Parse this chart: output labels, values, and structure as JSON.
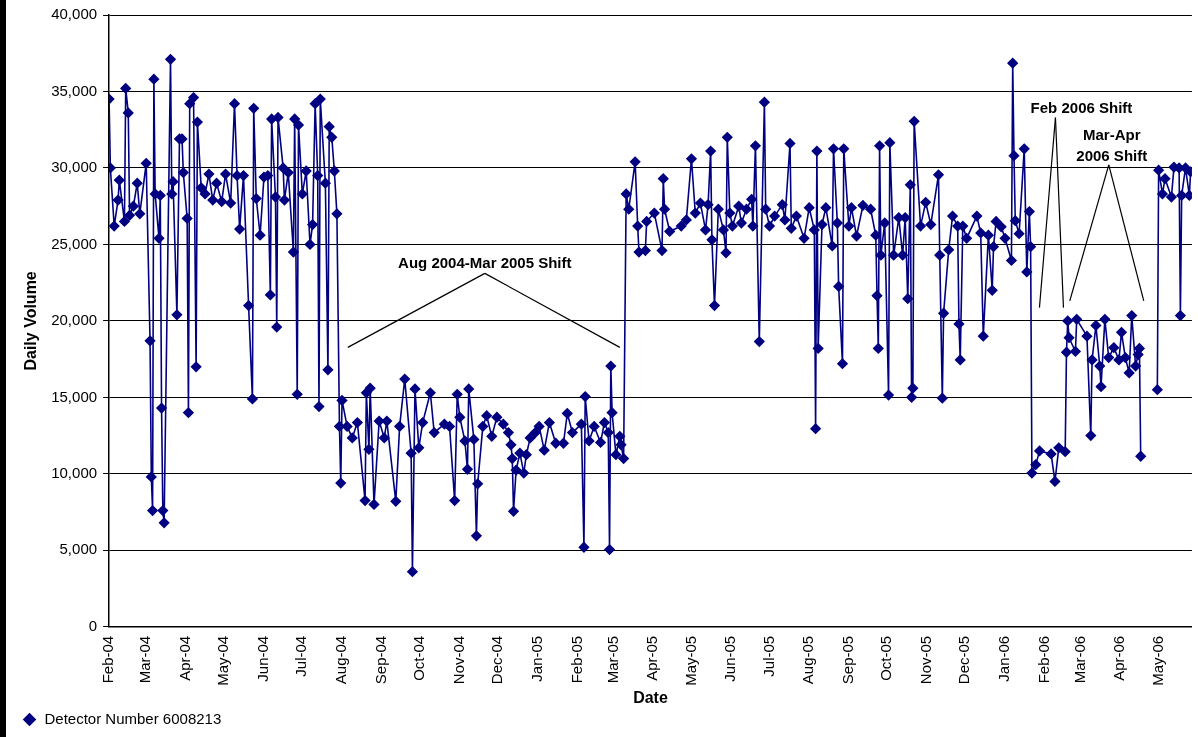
{
  "chart_data": {
    "type": "line",
    "xlabel": "Date",
    "ylabel": "Daily Volume",
    "xlim": [
      "2004-02-01",
      "2006-05-27"
    ],
    "xticks": [
      {
        "value": "2004-02-01",
        "label": "Feb-04"
      },
      {
        "value": "2004-03-01",
        "label": "Mar-04"
      },
      {
        "value": "2004-04-01",
        "label": "Apr-04"
      },
      {
        "value": "2004-05-01",
        "label": "May-04"
      },
      {
        "value": "2004-06-01",
        "label": "Jun-04"
      },
      {
        "value": "2004-07-01",
        "label": "Jul-04"
      },
      {
        "value": "2004-08-01",
        "label": "Aug-04"
      },
      {
        "value": "2004-09-01",
        "label": "Sep-04"
      },
      {
        "value": "2004-10-01",
        "label": "Oct-04"
      },
      {
        "value": "2004-11-01",
        "label": "Nov-04"
      },
      {
        "value": "2004-12-01",
        "label": "Dec-04"
      },
      {
        "value": "2005-01-01",
        "label": "Jan-05"
      },
      {
        "value": "2005-02-01",
        "label": "Feb-05"
      },
      {
        "value": "2005-03-01",
        "label": "Mar-05"
      },
      {
        "value": "2005-04-01",
        "label": "Apr-05"
      },
      {
        "value": "2005-05-01",
        "label": "May-05"
      },
      {
        "value": "2005-06-01",
        "label": "Jun-05"
      },
      {
        "value": "2005-07-01",
        "label": "Jul-05"
      },
      {
        "value": "2005-08-01",
        "label": "Aug-05"
      },
      {
        "value": "2005-09-01",
        "label": "Sep-05"
      },
      {
        "value": "2005-10-01",
        "label": "Oct-05"
      },
      {
        "value": "2005-11-01",
        "label": "Nov-05"
      },
      {
        "value": "2005-12-01",
        "label": "Dec-05"
      },
      {
        "value": "2006-01-01",
        "label": "Jan-06"
      },
      {
        "value": "2006-02-01",
        "label": "Feb-06"
      },
      {
        "value": "2006-03-01",
        "label": "Mar-06"
      },
      {
        "value": "2006-04-01",
        "label": "Apr-06"
      },
      {
        "value": "2006-05-01",
        "label": "May-06"
      }
    ],
    "ylim": [
      0,
      40000
    ],
    "yticks": [
      0,
      {
        "value": 5000,
        "label": "5,000"
      },
      {
        "value": 10000,
        "label": "10,000"
      },
      {
        "value": 15000,
        "label": "15,000"
      },
      {
        "value": 20000,
        "label": "20,000"
      },
      {
        "value": 25000,
        "label": "25,000"
      },
      {
        "value": 30000,
        "label": "30,000"
      },
      {
        "value": 35000,
        "label": "35,000"
      },
      {
        "value": 40000,
        "label": "40,000"
      }
    ],
    "grid": "y",
    "legend": "bottom left",
    "marker": "diamond",
    "line_style": "solid",
    "annotations": [
      "Aug 2004-Mar 2005 Shift",
      "Feb 2006 Shift",
      "Mar-Apr 2006 Shift"
    ],
    "series": [
      {
        "name": "Detector Number 6008213",
        "color": "#000080",
        "x": [
          "2004-02-01",
          "2004-02-02",
          "2004-02-05",
          "2004-02-08",
          "2004-02-09",
          "2004-02-13",
          "2004-02-14",
          "2004-02-16",
          "2004-02-17",
          "2004-02-20",
          "2004-02-23",
          "2004-02-25",
          "2004-03-01",
          "2004-03-04",
          "2004-03-05",
          "2004-03-06",
          "2004-03-07",
          "2004-03-08",
          "2004-03-11",
          "2004-03-12",
          "2004-03-13",
          "2004-03-14",
          "2004-03-15",
          "2004-03-20",
          "2004-03-21",
          "2004-03-22",
          "2004-03-25",
          "2004-03-27",
          "2004-03-29",
          "2004-03-30",
          "2004-04-02",
          "2004-04-03",
          "2004-04-04",
          "2004-04-07",
          "2004-04-09",
          "2004-04-10",
          "2004-04-13",
          "2004-04-16",
          "2004-04-19",
          "2004-04-22",
          "2004-04-25",
          "2004-04-29",
          "2004-05-02",
          "2004-05-06",
          "2004-05-09",
          "2004-05-11",
          "2004-05-13",
          "2004-05-16",
          "2004-05-20",
          "2004-05-23",
          "2004-05-24",
          "2004-05-26",
          "2004-05-29",
          "2004-06-01",
          "2004-06-04",
          "2004-06-06",
          "2004-06-07",
          "2004-06-10",
          "2004-06-11",
          "2004-06-12",
          "2004-06-16",
          "2004-06-17",
          "2004-06-20",
          "2004-06-24",
          "2004-06-25",
          "2004-06-27",
          "2004-06-28",
          "2004-07-01",
          "2004-07-04",
          "2004-07-07",
          "2004-07-09",
          "2004-07-11",
          "2004-07-13",
          "2004-07-14",
          "2004-07-15",
          "2004-07-19",
          "2004-07-21",
          "2004-07-22",
          "2004-07-24",
          "2004-07-26",
          "2004-07-28",
          "2004-07-30",
          "2004-07-31",
          "2004-08-01",
          "2004-08-05",
          "2004-08-09",
          "2004-08-13",
          "2004-08-19",
          "2004-08-20",
          "2004-08-22",
          "2004-08-23",
          "2004-08-26",
          "2004-08-30",
          "2004-09-03",
          "2004-09-05",
          "2004-09-12",
          "2004-09-15",
          "2004-09-19",
          "2004-09-24",
          "2004-09-25",
          "2004-09-27",
          "2004-09-30",
          "2004-10-03",
          "2004-10-09",
          "2004-10-12",
          "2004-10-20",
          "2004-10-24",
          "2004-10-28",
          "2004-10-30",
          "2004-11-01",
          "2004-11-05",
          "2004-11-07",
          "2004-11-08",
          "2004-11-12",
          "2004-11-14",
          "2004-11-15",
          "2004-11-19",
          "2004-11-22",
          "2004-11-26",
          "2004-11-30",
          "2004-12-05",
          "2004-12-09",
          "2004-12-11",
          "2004-12-12",
          "2004-12-13",
          "2004-12-15",
          "2004-12-18",
          "2004-12-21",
          "2004-12-23",
          "2004-12-26",
          "2004-12-30",
          "2005-01-02",
          "2005-01-06",
          "2005-01-10",
          "2005-01-15",
          "2005-01-21",
          "2005-01-24",
          "2005-01-28",
          "2005-02-04",
          "2005-02-06",
          "2005-02-07",
          "2005-02-10",
          "2005-02-14",
          "2005-02-19",
          "2005-02-22",
          "2005-02-25",
          "2005-02-26",
          "2005-02-27",
          "2005-02-28",
          "2005-03-03",
          "2005-03-06",
          "2005-03-07",
          "2005-03-09",
          "2005-03-11",
          "2005-03-13",
          "2005-03-18",
          "2005-03-20",
          "2005-03-21",
          "2005-03-26",
          "2005-03-27",
          "2005-04-02",
          "2005-04-08",
          "2005-04-09",
          "2005-04-10",
          "2005-04-14",
          "2005-04-23",
          "2005-04-27",
          "2005-05-01",
          "2005-05-04",
          "2005-05-08",
          "2005-05-12",
          "2005-05-14",
          "2005-05-16",
          "2005-05-17",
          "2005-05-19",
          "2005-05-22",
          "2005-05-26",
          "2005-05-28",
          "2005-05-29",
          "2005-05-31",
          "2005-06-02",
          "2005-06-07",
          "2005-06-09",
          "2005-06-13",
          "2005-06-17",
          "2005-06-18",
          "2005-06-20",
          "2005-06-23",
          "2005-06-27",
          "2005-06-28",
          "2005-07-01",
          "2005-07-05",
          "2005-07-11",
          "2005-07-13",
          "2005-07-17",
          "2005-07-18",
          "2005-07-22",
          "2005-07-28",
          "2005-08-01",
          "2005-08-05",
          "2005-08-06",
          "2005-08-07",
          "2005-08-08",
          "2005-08-11",
          "2005-08-14",
          "2005-08-19",
          "2005-08-20",
          "2005-08-23",
          "2005-08-24",
          "2005-08-27",
          "2005-08-28",
          "2005-09-01",
          "2005-09-03",
          "2005-09-07",
          "2005-09-12",
          "2005-09-18",
          "2005-09-22",
          "2005-09-23",
          "2005-09-24",
          "2005-09-25",
          "2005-09-26",
          "2005-09-29",
          "2005-10-02",
          "2005-10-03",
          "2005-10-06",
          "2005-10-10",
          "2005-10-13",
          "2005-10-15",
          "2005-10-17",
          "2005-10-19",
          "2005-10-20",
          "2005-10-21",
          "2005-10-22",
          "2005-10-27",
          "2005-10-31",
          "2005-11-04",
          "2005-11-10",
          "2005-11-11",
          "2005-11-13",
          "2005-11-14",
          "2005-11-18",
          "2005-11-21",
          "2005-11-25",
          "2005-11-26",
          "2005-11-27",
          "2005-11-29",
          "2005-12-02",
          "2005-12-10",
          "2005-12-13",
          "2005-12-15",
          "2005-12-19",
          "2005-12-22",
          "2005-12-23",
          "2005-12-25",
          "2005-12-29",
          "2006-01-01",
          "2006-01-06",
          "2006-01-07",
          "2006-01-08",
          "2006-01-09",
          "2006-01-12",
          "2006-01-16",
          "2006-01-18",
          "2006-01-20",
          "2006-01-21",
          "2006-01-22",
          "2006-01-25",
          "2006-01-28",
          "2006-02-06",
          "2006-02-09",
          "2006-02-12",
          "2006-02-17",
          "2006-02-18",
          "2006-02-19",
          "2006-02-20",
          "2006-02-25",
          "2006-02-26",
          "2006-03-06",
          "2006-03-09",
          "2006-03-10",
          "2006-03-13",
          "2006-03-16",
          "2006-03-17",
          "2006-03-20",
          "2006-03-23",
          "2006-03-27",
          "2006-03-31",
          "2006-04-02",
          "2006-04-05",
          "2006-04-08",
          "2006-04-10",
          "2006-04-13",
          "2006-04-15",
          "2006-04-16",
          "2006-04-17",
          "2006-04-25",
          "2006-04-30",
          "2006-05-01",
          "2006-05-04",
          "2006-05-06",
          "2006-05-11",
          "2006-05-13",
          "2006-05-17",
          "2006-05-18",
          "2006-05-19",
          "2006-05-22",
          "2006-05-25",
          "2006-05-26"
        ],
        "values": [
          34500,
          30000,
          26200,
          27900,
          29200,
          26500,
          35200,
          33600,
          26900,
          27500,
          29000,
          27000,
          30300,
          18700,
          9800,
          7600,
          35800,
          28300,
          25400,
          28200,
          14300,
          7600,
          6800,
          37100,
          28300,
          29100,
          20400,
          31900,
          31900,
          29700,
          26700,
          14000,
          34200,
          34600,
          17000,
          33000,
          28700,
          28300,
          29600,
          27900,
          29000,
          27800,
          29600,
          27700,
          34200,
          29500,
          26000,
          29500,
          21000,
          14900,
          33900,
          28000,
          25600,
          29400,
          29500,
          21700,
          33200,
          28100,
          19600,
          33300,
          30000,
          27900,
          29700,
          24500,
          33200,
          15200,
          32800,
          28300,
          29800,
          25000,
          26300,
          34200,
          29500,
          14400,
          34500,
          29000,
          16800,
          32700,
          32000,
          29800,
          27000,
          13100,
          9400,
          14800,
          13100,
          12350,
          13350,
          8250,
          15300,
          11600,
          15600,
          8000,
          13450,
          12350,
          13450,
          8200,
          13100,
          16200,
          11350,
          3600,
          15550,
          11700,
          13350,
          15300,
          12700,
          13250,
          13100,
          8250,
          15200,
          13700,
          12150,
          10300,
          15550,
          12250,
          5950,
          9350,
          13100,
          13800,
          12450,
          13700,
          13250,
          12700,
          11900,
          11000,
          7550,
          10250,
          11350,
          10050,
          11250,
          12350,
          12700,
          13100,
          11550,
          13350,
          12000,
          12000,
          13950,
          12700,
          13250,
          5200,
          15050,
          12150,
          13100,
          12050,
          13350,
          12700,
          5050,
          17050,
          14000,
          11250,
          12450,
          11900,
          11000,
          28300,
          27300,
          30400,
          26200,
          24500,
          24600,
          26500,
          27050,
          24600,
          29300,
          27300,
          25850,
          26200,
          26600,
          30600,
          27050,
          27700,
          25950,
          27600,
          31100,
          25300,
          21000,
          27300,
          25950,
          24450,
          32000,
          27050,
          26200,
          27500,
          26400,
          27300,
          27950,
          26200,
          31450,
          18650,
          34300,
          27300,
          26200,
          26850,
          27600,
          26600,
          31600,
          26050,
          26850,
          25400,
          27400,
          25950,
          12950,
          31100,
          18200,
          26300,
          27400,
          24900,
          31250,
          26400,
          22250,
          17200,
          31250,
          26200,
          27400,
          25550,
          27550,
          27300,
          25600,
          21650,
          18200,
          31450,
          24300,
          26400,
          15150,
          31650,
          24300,
          26750,
          24300,
          26750,
          21450,
          28900,
          15000,
          15600,
          33050,
          26200,
          27750,
          26300,
          29550,
          24300,
          14950,
          20500,
          24650,
          26850,
          26200,
          19800,
          17450,
          26200,
          25400,
          26850,
          25750,
          19000,
          25600,
          22000,
          24850,
          26500,
          26150,
          25400,
          23950,
          36850,
          30800,
          26550,
          25700,
          31250,
          23200,
          27150,
          24850,
          10050,
          10600,
          11500,
          11300,
          9500,
          11700,
          11450,
          17950,
          20000,
          18900,
          18000,
          20100,
          19000,
          12500,
          17450,
          19700,
          17050,
          15700,
          20100,
          17600,
          18250,
          17450,
          19250,
          17600,
          16600,
          20350,
          17050,
          17800,
          18200,
          11150,
          null,
          15500,
          29850,
          28300,
          29300,
          28100,
          30050,
          30000,
          20350,
          28200,
          30000,
          28200,
          29750
        ]
      }
    ]
  }
}
